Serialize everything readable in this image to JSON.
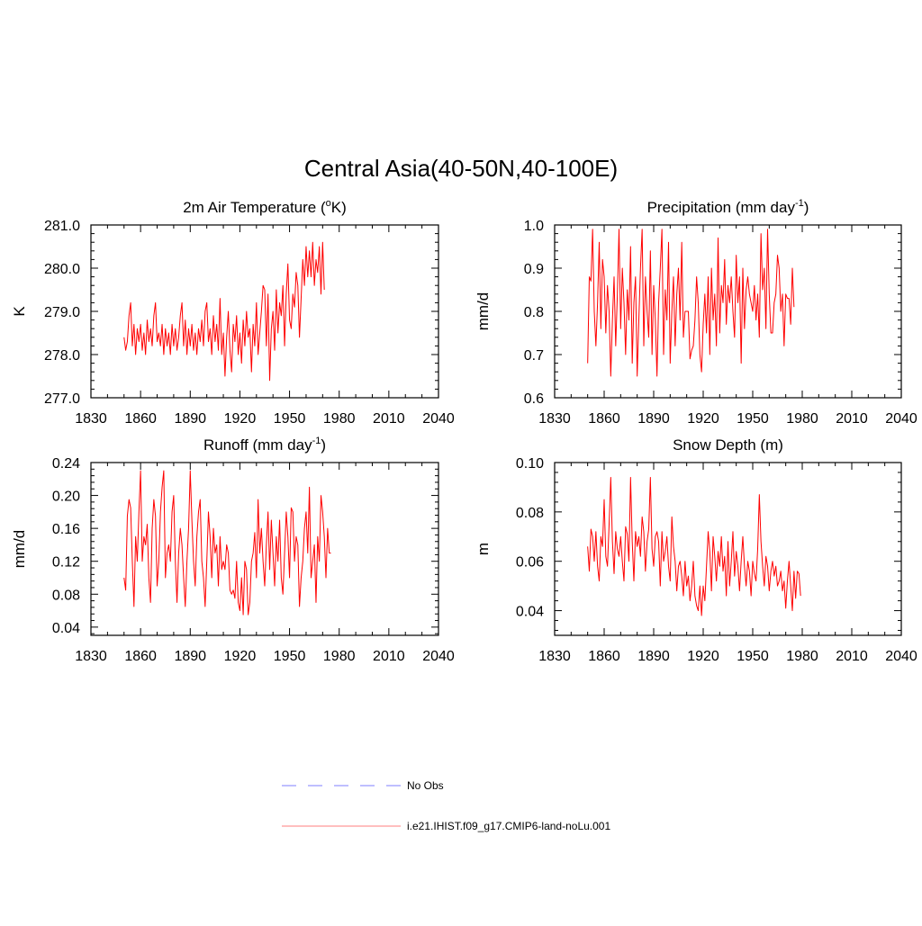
{
  "title": "Central Asia(40-50N,40-100E)",
  "colors": {
    "model": "#ff0000",
    "obs": "#9999ff",
    "axis": "#000000"
  },
  "legend": {
    "items": [
      {
        "label": "No Obs",
        "style": "dashed",
        "color": "#9999ff"
      },
      {
        "label": "i.e21.IHIST.f09_g17.CMIP6-land-noLu.001",
        "style": "solid",
        "color": "#ff9999"
      }
    ]
  },
  "chart_data": [
    {
      "type": "line",
      "title_main": "2m Air Temperature (",
      "title_sup": "o",
      "title_tail": "K)",
      "ylabel": "K",
      "xlim": [
        1830,
        2040
      ],
      "ylim": [
        277.0,
        281.0
      ],
      "xticks": [
        1830,
        1860,
        1890,
        1920,
        1950,
        1980,
        2010,
        2040
      ],
      "yticks": [
        277.0,
        278.0,
        279.0,
        280.0,
        281.0
      ],
      "ytick_labels": [
        "277.0",
        "278.0",
        "279.0",
        "280.0",
        "281.0"
      ],
      "series": [
        {
          "x_start": 1850,
          "values": [
            278.4,
            278.1,
            278.3,
            278.9,
            279.2,
            278.2,
            278.7,
            278.0,
            278.6,
            278.3,
            278.7,
            278.1,
            278.5,
            278.0,
            278.8,
            278.3,
            278.6,
            278.2,
            278.9,
            279.2,
            278.3,
            278.5,
            278.2,
            278.7,
            278.0,
            278.6,
            278.2,
            278.5,
            278.0,
            278.7,
            278.2,
            278.6,
            278.1,
            278.4,
            278.9,
            279.2,
            278.2,
            278.8,
            278.0,
            278.6,
            278.2,
            278.7,
            278.1,
            278.5,
            278.0,
            278.6,
            278.3,
            278.8,
            278.2,
            279.0,
            279.2,
            278.3,
            278.6,
            278.0,
            278.9,
            278.3,
            278.7,
            278.1,
            279.3,
            278.0,
            278.5,
            277.5,
            278.4,
            279.0,
            278.1,
            277.6,
            278.7,
            278.3,
            278.9,
            278.0,
            278.5,
            277.8,
            278.8,
            278.2,
            279.0,
            278.4,
            278.6,
            277.6,
            278.7,
            278.2,
            279.2,
            278.0,
            278.5,
            279.0,
            279.6,
            279.5,
            278.2,
            279.4,
            277.4,
            278.6,
            279.0,
            278.1,
            279.5,
            278.5,
            279.2,
            278.9,
            279.6,
            278.2,
            279.4,
            280.1,
            278.8,
            278.6,
            279.4,
            279.1,
            279.9,
            279.6,
            278.4,
            279.3,
            280.2,
            279.6,
            280.5,
            279.8,
            280.4,
            279.8,
            280.6,
            279.6,
            280.2,
            279.9,
            280.5,
            279.4,
            280.6,
            279.5
          ]
        }
      ]
    },
    {
      "type": "line",
      "title_main": "Precipitation (mm day",
      "title_sup": "-1",
      "title_tail": ")",
      "ylabel": "mm/d",
      "xlim": [
        1830,
        2040
      ],
      "ylim": [
        0.6,
        1.0
      ],
      "xticks": [
        1830,
        1860,
        1890,
        1920,
        1950,
        1980,
        2010,
        2040
      ],
      "yticks": [
        0.6,
        0.7,
        0.8,
        0.9,
        1.0
      ],
      "ytick_labels": [
        "0.6",
        "0.7",
        "0.8",
        "0.9",
        "1.0"
      ],
      "series": [
        {
          "x_start": 1850,
          "values": [
            0.68,
            0.88,
            0.87,
            0.99,
            0.8,
            0.72,
            0.82,
            0.96,
            0.76,
            0.92,
            0.88,
            0.75,
            0.86,
            0.8,
            0.65,
            0.78,
            0.88,
            0.72,
            0.84,
            0.99,
            0.76,
            0.9,
            0.82,
            0.7,
            0.85,
            0.78,
            0.95,
            0.68,
            0.82,
            0.88,
            0.65,
            0.78,
            0.9,
            0.99,
            0.72,
            0.88,
            0.8,
            0.74,
            0.94,
            0.7,
            0.86,
            0.78,
            0.65,
            0.82,
            0.9,
            0.99,
            0.7,
            0.85,
            0.78,
            0.96,
            0.68,
            0.8,
            0.88,
            0.72,
            0.84,
            0.9,
            0.78,
            0.96,
            0.74,
            0.8,
            0.8,
            0.8,
            0.69,
            0.71,
            0.72,
            0.78,
            0.88,
            0.82,
            0.7,
            0.66,
            0.77,
            0.84,
            0.75,
            0.88,
            0.7,
            0.9,
            0.78,
            0.84,
            0.72,
            0.97,
            0.75,
            0.86,
            0.82,
            0.92,
            0.77,
            0.86,
            0.82,
            0.88,
            0.8,
            0.74,
            0.93,
            0.82,
            0.88,
            0.68,
            0.9,
            0.76,
            0.85,
            0.88,
            0.84,
            0.82,
            0.8,
            0.86,
            0.78,
            0.84,
            0.74,
            0.98,
            0.85,
            0.9,
            0.76,
            0.99,
            0.84,
            0.75,
            0.75,
            0.82,
            0.84,
            0.93,
            0.9,
            0.8,
            0.84,
            0.72,
            0.84,
            0.83,
            0.83,
            0.77,
            0.9,
            0.81
          ]
        }
      ]
    },
    {
      "type": "line",
      "title_main": "Runoff (mm day",
      "title_sup": "-1",
      "title_tail": ")",
      "ylabel": "mm/d",
      "xlim": [
        1830,
        2040
      ],
      "ylim": [
        0.03,
        0.24
      ],
      "xticks": [
        1830,
        1860,
        1890,
        1920,
        1950,
        1980,
        2010,
        2040
      ],
      "yticks": [
        0.04,
        0.08,
        0.12,
        0.16,
        0.2,
        0.24
      ],
      "ytick_labels": [
        "0.04",
        "0.08",
        "0.12",
        "0.16",
        "0.20",
        "0.24"
      ],
      "series": [
        {
          "x_start": 1850,
          "values": [
            0.1,
            0.085,
            0.175,
            0.195,
            0.185,
            0.12,
            0.065,
            0.15,
            0.12,
            0.18,
            0.23,
            0.12,
            0.15,
            0.14,
            0.165,
            0.1,
            0.07,
            0.16,
            0.195,
            0.175,
            0.09,
            0.12,
            0.18,
            0.21,
            0.23,
            0.1,
            0.13,
            0.14,
            0.12,
            0.18,
            0.2,
            0.12,
            0.07,
            0.13,
            0.16,
            0.14,
            0.1,
            0.065,
            0.12,
            0.16,
            0.23,
            0.17,
            0.12,
            0.09,
            0.15,
            0.18,
            0.195,
            0.12,
            0.1,
            0.065,
            0.12,
            0.18,
            0.15,
            0.1,
            0.16,
            0.13,
            0.14,
            0.09,
            0.15,
            0.11,
            0.12,
            0.11,
            0.14,
            0.13,
            0.085,
            0.08,
            0.085,
            0.075,
            0.12,
            0.07,
            0.06,
            0.1,
            0.055,
            0.12,
            0.11,
            0.055,
            0.07,
            0.12,
            0.13,
            0.155,
            0.1,
            0.195,
            0.13,
            0.16,
            0.12,
            0.09,
            0.14,
            0.18,
            0.11,
            0.17,
            0.13,
            0.09,
            0.15,
            0.12,
            0.17,
            0.1,
            0.08,
            0.13,
            0.18,
            0.15,
            0.1,
            0.185,
            0.18,
            0.12,
            0.15,
            0.14,
            0.065,
            0.1,
            0.12,
            0.16,
            0.18,
            0.13,
            0.21,
            0.1,
            0.12,
            0.14,
            0.07,
            0.15,
            0.12,
            0.2,
            0.18,
            0.15,
            0.1,
            0.16,
            0.13,
            0.13
          ]
        }
      ]
    },
    {
      "type": "line",
      "title_main": "Snow Depth (m)",
      "title_sup": "",
      "title_tail": "",
      "ylabel": "m",
      "xlim": [
        1830,
        2040
      ],
      "ylim": [
        0.03,
        0.1
      ],
      "xticks": [
        1830,
        1860,
        1890,
        1920,
        1950,
        1980,
        2010,
        2040
      ],
      "yticks": [
        0.04,
        0.06,
        0.08,
        0.1
      ],
      "ytick_labels": [
        "0.04",
        "0.06",
        "0.08",
        "0.10"
      ],
      "series": [
        {
          "x_start": 1850,
          "values": [
            0.066,
            0.056,
            0.073,
            0.07,
            0.06,
            0.072,
            0.058,
            0.052,
            0.07,
            0.066,
            0.085,
            0.062,
            0.058,
            0.075,
            0.094,
            0.068,
            0.055,
            0.072,
            0.065,
            0.062,
            0.07,
            0.06,
            0.052,
            0.074,
            0.071,
            0.06,
            0.094,
            0.068,
            0.052,
            0.072,
            0.066,
            0.07,
            0.062,
            0.078,
            0.072,
            0.056,
            0.068,
            0.073,
            0.094,
            0.065,
            0.058,
            0.07,
            0.072,
            0.068,
            0.05,
            0.072,
            0.06,
            0.064,
            0.07,
            0.058,
            0.052,
            0.078,
            0.066,
            0.06,
            0.048,
            0.058,
            0.06,
            0.054,
            0.046,
            0.06,
            0.05,
            0.054,
            0.044,
            0.05,
            0.06,
            0.046,
            0.042,
            0.04,
            0.05,
            0.038,
            0.05,
            0.044,
            0.058,
            0.072,
            0.064,
            0.048,
            0.07,
            0.062,
            0.052,
            0.064,
            0.058,
            0.07,
            0.056,
            0.062,
            0.046,
            0.068,
            0.05,
            0.06,
            0.072,
            0.054,
            0.064,
            0.058,
            0.048,
            0.06,
            0.07,
            0.058,
            0.05,
            0.06,
            0.056,
            0.046,
            0.06,
            0.055,
            0.052,
            0.065,
            0.087,
            0.068,
            0.058,
            0.05,
            0.062,
            0.058,
            0.048,
            0.056,
            0.06,
            0.054,
            0.058,
            0.05,
            0.052,
            0.056,
            0.048,
            0.052,
            0.041,
            0.052,
            0.06,
            0.05,
            0.04,
            0.056,
            0.045,
            0.056,
            0.055,
            0.046
          ]
        }
      ]
    }
  ]
}
